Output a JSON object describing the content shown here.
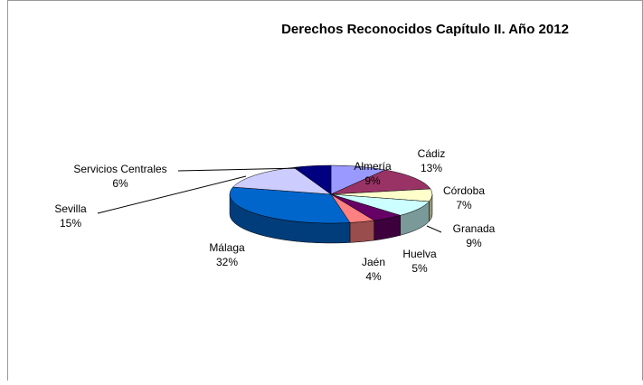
{
  "chart_data": {
    "type": "pie3d",
    "title": "Derechos Reconocidos Capítulo II. Año 2012",
    "categories": [
      "Almería",
      "Cádiz",
      "Córdoba",
      "Granada",
      "Huelva",
      "Jaén",
      "Málaga",
      "Sevilla",
      "Servicios Centrales"
    ],
    "values": [
      9,
      13,
      7,
      9,
      5,
      4,
      32,
      15,
      6
    ],
    "value_labels": [
      "9%",
      "13%",
      "7%",
      "9%",
      "5%",
      "4%",
      "32%",
      "15%",
      "6%"
    ],
    "colors": [
      "#9999ff",
      "#993366",
      "#ffffcc",
      "#ccffff",
      "#660066",
      "#ff8080",
      "#0066cc",
      "#ccccff",
      "#000080"
    ]
  }
}
